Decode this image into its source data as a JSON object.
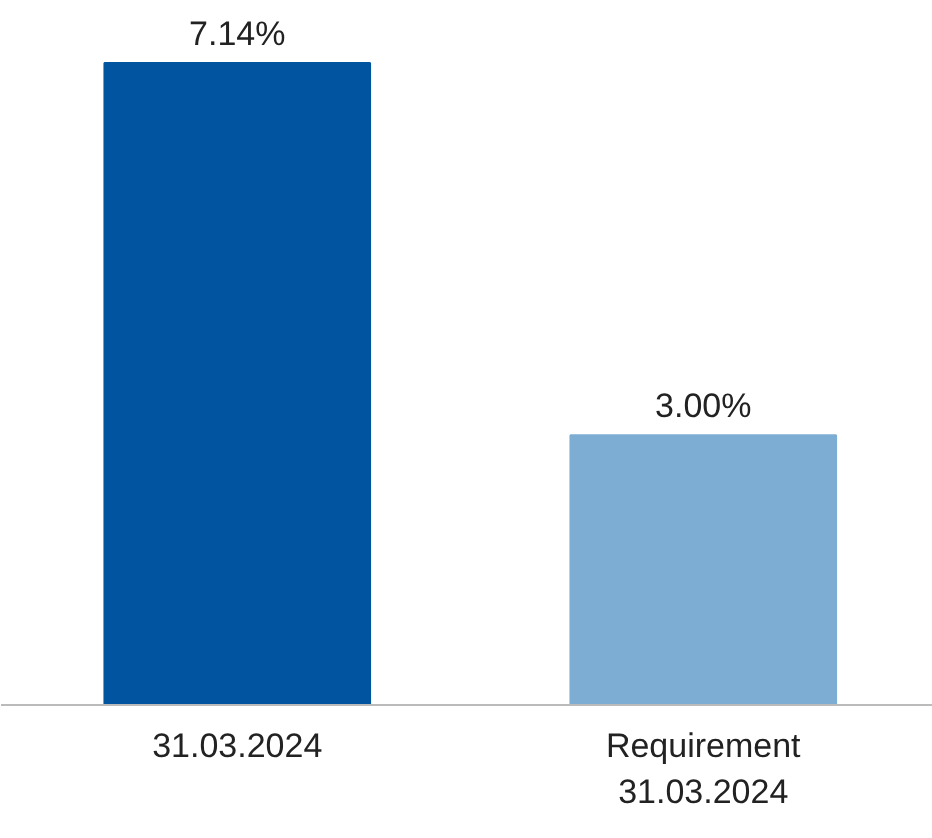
{
  "chart_data": {
    "type": "bar",
    "categories": [
      "31.03.2024",
      "Requirement\n31.03.2024"
    ],
    "values": [
      7.14,
      3.0
    ],
    "colors": [
      "#0054a0",
      "#7eadd3"
    ],
    "value_labels": [
      "7.14%",
      "3.00%"
    ]
  }
}
